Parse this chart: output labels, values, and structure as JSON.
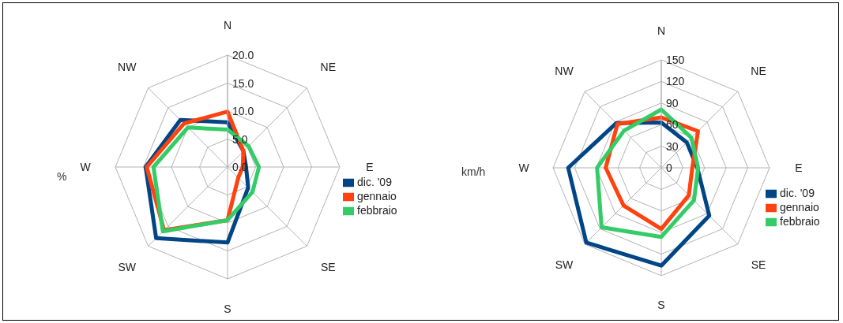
{
  "chart_data": [
    {
      "type": "radar",
      "ylabel": "%",
      "categories": [
        "N",
        "NE",
        "E",
        "SE",
        "S",
        "SW",
        "W",
        "NW"
      ],
      "ylim": [
        0,
        20
      ],
      "yticks": [
        {
          "value": 0,
          "label": "0.0"
        },
        {
          "value": 5,
          "label": "5.0"
        },
        {
          "value": 10,
          "label": "10.0"
        },
        {
          "value": 15,
          "label": "15.0"
        },
        {
          "value": 20,
          "label": "20.0"
        }
      ],
      "grid": true,
      "legend": "right",
      "marker": "none",
      "series": [
        {
          "name": "dic. '09",
          "color": "#004586",
          "values": [
            8.0,
            4.0,
            3.3,
            5.2,
            13.5,
            18.0,
            14.6,
            11.9
          ]
        },
        {
          "name": "gennaio",
          "color": "#ff420e",
          "values": [
            9.9,
            4.0,
            2.7,
            2.7,
            9.5,
            16.0,
            14.4,
            11.0
          ]
        },
        {
          "name": "febbraio",
          "color": "#33cc66",
          "values": [
            6.7,
            5.3,
            5.6,
            6.3,
            9.5,
            16.3,
            13.2,
            10.0
          ]
        }
      ]
    },
    {
      "type": "radar",
      "ylabel": "km/h",
      "categories": [
        "N",
        "NE",
        "E",
        "SE",
        "S",
        "SW",
        "W",
        "NW"
      ],
      "ylim": [
        0,
        150
      ],
      "yticks": [
        0,
        30,
        60,
        90,
        120,
        150
      ],
      "grid": true,
      "legend": "right",
      "marker": "none",
      "series": [
        {
          "name": "dic. '09",
          "color": "#004586",
          "values": [
            63,
            50,
            50,
            94,
            136,
            147,
            129,
            88
          ]
        },
        {
          "name": "gennaio",
          "color": "#ff420e",
          "values": [
            70,
            72,
            43,
            54,
            85,
            74,
            77,
            86
          ]
        },
        {
          "name": "febbraio",
          "color": "#33cc66",
          "values": [
            81,
            59,
            51,
            64,
            96,
            117,
            89,
            73
          ]
        }
      ]
    }
  ]
}
